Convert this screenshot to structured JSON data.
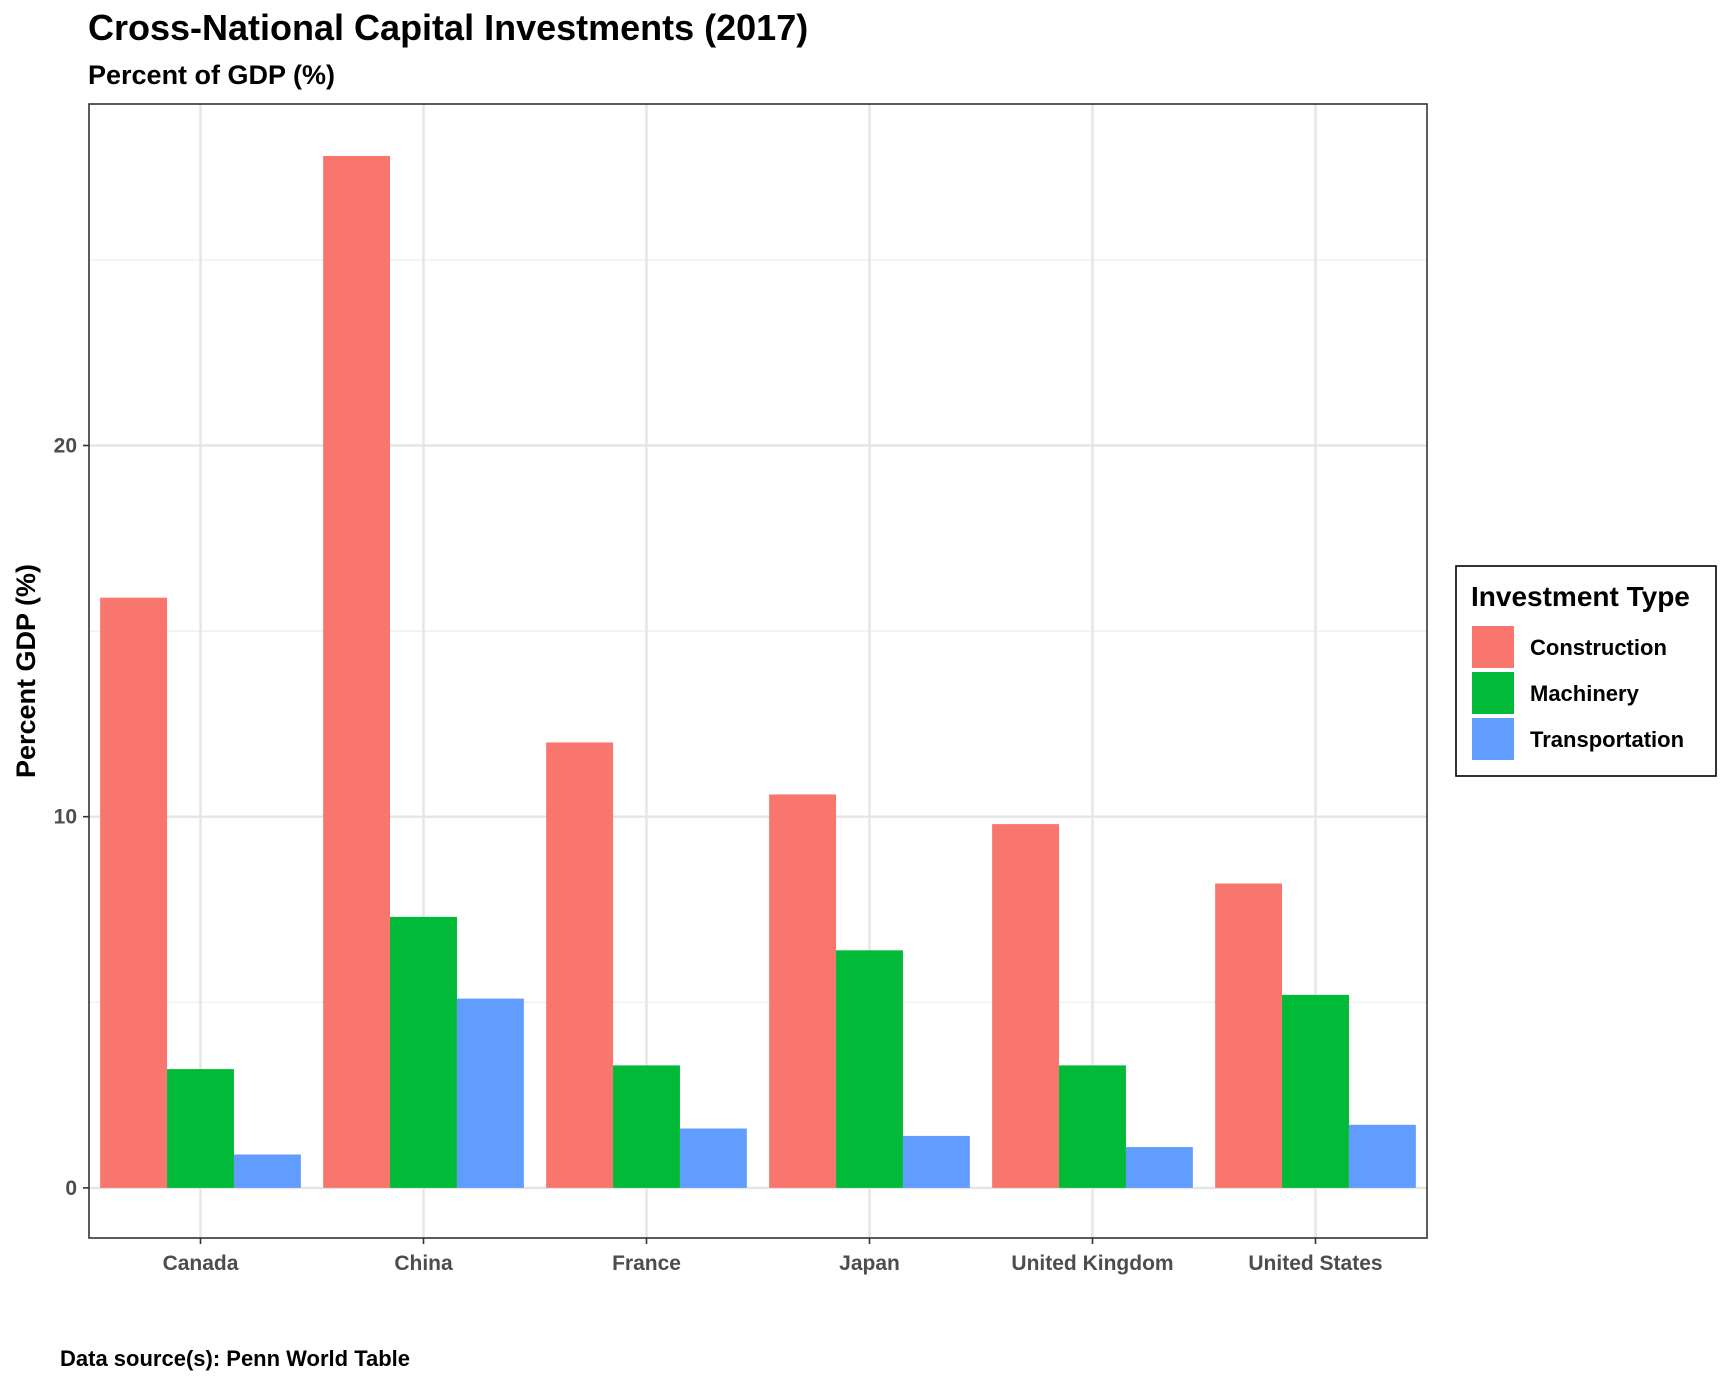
{
  "chart_data": {
    "type": "bar",
    "title": "Cross-National Capital Investments (2017)",
    "subtitle": "Percent of GDP (%)",
    "xlabel": "",
    "ylabel": "Percent GDP (%)",
    "caption": "Data source(s): Penn World Table",
    "categories": [
      "Canada",
      "China",
      "France",
      "Japan",
      "United Kingdom",
      "United States"
    ],
    "series": [
      {
        "name": "Construction",
        "color": "#F8766D",
        "values": [
          15.9,
          27.8,
          12.0,
          10.6,
          9.8,
          8.2
        ]
      },
      {
        "name": "Machinery",
        "color": "#00BA38",
        "values": [
          3.2,
          7.3,
          3.3,
          6.4,
          3.3,
          5.2
        ]
      },
      {
        "name": "Transportation",
        "color": "#619CFF",
        "values": [
          0.9,
          5.1,
          1.6,
          1.4,
          1.1,
          1.7
        ]
      }
    ],
    "ylim": [
      -1.35,
      29.2
    ],
    "yticks": [
      0,
      10,
      20
    ],
    "legend": {
      "title": "Investment Type",
      "position": "right"
    },
    "grid": true
  }
}
